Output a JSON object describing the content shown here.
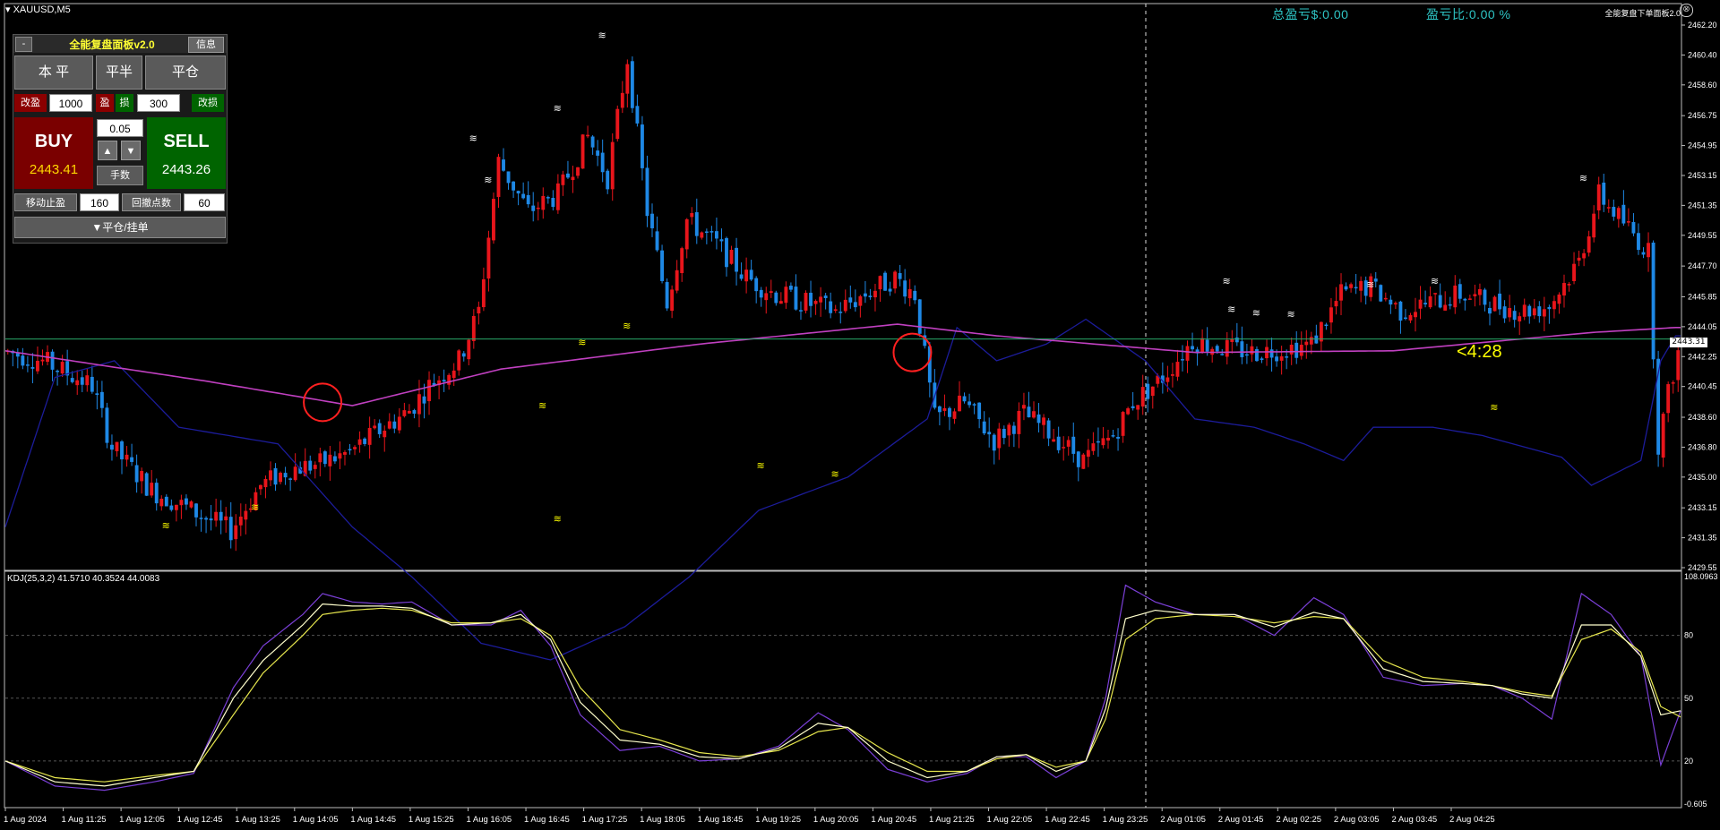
{
  "window": {
    "title": "XAUUSD,M5",
    "menu_icon": "triangle-down-icon"
  },
  "stats": {
    "total_pnl": "总盈亏$:0.00",
    "pnl_ratio": "盈亏比:0.00 %",
    "panel_name": "全能复盘下单面板2.0"
  },
  "panel": {
    "minimize": "-",
    "title": "全能复盘面板v2.0",
    "info": "信息",
    "breakeven": "本 平",
    "close_half": "平半",
    "close_all": "平仓",
    "tp_modify": "改盈",
    "tp_value": "1000",
    "tp_label": "盈",
    "sl_label": "损",
    "sl_value": "300",
    "sl_modify": "改损",
    "lot": "0.05",
    "lot_label": "手数",
    "up": "▲",
    "down": "▼",
    "buy_label": "BUY",
    "buy_price": "2443.41",
    "sell_label": "SELL",
    "sell_price": "2443.26",
    "trail_label": "移动止盈",
    "trail_value": "160",
    "retrace_label": "回撤点数",
    "retrace_value": "60",
    "pending": "▼平仓/挂单"
  },
  "price_tag": "2443.31",
  "countdown": "<4:28",
  "kdj_label": "KDJ(25,3,2) 41.5710 40.3524 44.0083",
  "colors": {
    "bull": "#e8151b",
    "bear": "#1e88e5",
    "ma": "#c040c0",
    "band": "#1c1c9a",
    "k": "#ffffcc",
    "d": "#e6e64d",
    "j": "#7a3fd6",
    "price_line": "#2aa86a"
  },
  "chart_data": {
    "type": "candlestick",
    "symbol": "XAUUSD",
    "timeframe": "M5",
    "price_axis": {
      "ticks": [
        "2462.20",
        "2460.40",
        "2458.60",
        "2456.75",
        "2454.95",
        "2453.15",
        "2451.35",
        "2449.55",
        "2447.70",
        "2445.85",
        "2444.05",
        "2442.25",
        "2440.45",
        "2438.60",
        "2436.80",
        "2435.00",
        "2433.15",
        "2431.35",
        "2429.55"
      ],
      "range": [
        2429.55,
        2462.2
      ],
      "current_price": 2443.31
    },
    "kdj_axis": {
      "ticks": [
        "108.0963",
        "80",
        "50",
        "20",
        "-0.605"
      ],
      "range": [
        -0.605,
        108.0963
      ]
    },
    "time_ticks": [
      "1 Aug 2024",
      "1 Aug 11:25",
      "1 Aug 12:05",
      "1 Aug 12:45",
      "1 Aug 13:25",
      "1 Aug 14:05",
      "1 Aug 14:45",
      "1 Aug 15:25",
      "1 Aug 16:05",
      "1 Aug 16:45",
      "1 Aug 17:25",
      "1 Aug 18:05",
      "1 Aug 18:45",
      "1 Aug 19:25",
      "1 Aug 20:05",
      "1 Aug 20:45",
      "1 Aug 21:25",
      "1 Aug 22:05",
      "1 Aug 22:45",
      "1 Aug 23:25",
      "2 Aug 01:05",
      "2 Aug 01:45",
      "2 Aug 02:25",
      "2 Aug 03:05",
      "2 Aug 03:45",
      "2 Aug 04:25"
    ],
    "price_path": [
      [
        0,
        2442.6
      ],
      [
        8,
        2442.0
      ],
      [
        18,
        2440.5
      ],
      [
        22,
        2436.8
      ],
      [
        30,
        2434.2
      ],
      [
        38,
        2433.0
      ],
      [
        46,
        2431.8
      ],
      [
        52,
        2434.5
      ],
      [
        58,
        2435.5
      ],
      [
        64,
        2435.8
      ],
      [
        70,
        2436.5
      ],
      [
        76,
        2437.8
      ],
      [
        82,
        2439.0
      ],
      [
        86,
        2440.5
      ],
      [
        92,
        2442.0
      ],
      [
        96,
        2445.0
      ],
      [
        100,
        2454.0
      ],
      [
        106,
        2451.0
      ],
      [
        112,
        2452.0
      ],
      [
        118,
        2455.5
      ],
      [
        122,
        2453.0
      ],
      [
        126,
        2460.2
      ],
      [
        130,
        2451.0
      ],
      [
        134,
        2445.5
      ],
      [
        138,
        2450.5
      ],
      [
        144,
        2449.0
      ],
      [
        150,
        2447.0
      ],
      [
        156,
        2446.0
      ],
      [
        162,
        2445.5
      ],
      [
        168,
        2445.0
      ],
      [
        174,
        2446.0
      ],
      [
        180,
        2447.0
      ],
      [
        184,
        2446.0
      ],
      [
        188,
        2438.5
      ],
      [
        194,
        2439.5
      ],
      [
        200,
        2437.2
      ],
      [
        206,
        2438.8
      ],
      [
        212,
        2437.5
      ],
      [
        218,
        2436.0
      ],
      [
        224,
        2437.5
      ],
      [
        228,
        2439.5
      ],
      [
        234,
        2441.0
      ],
      [
        240,
        2443.2
      ],
      [
        246,
        2442.8
      ],
      [
        252,
        2442.5
      ],
      [
        258,
        2442.7
      ],
      [
        264,
        2443.0
      ],
      [
        270,
        2446.0
      ],
      [
        276,
        2446.5
      ],
      [
        282,
        2445.0
      ],
      [
        288,
        2445.5
      ],
      [
        294,
        2446.0
      ],
      [
        300,
        2445.5
      ],
      [
        306,
        2445.0
      ],
      [
        312,
        2445.3
      ],
      [
        318,
        2448.0
      ],
      [
        322,
        2452.0
      ],
      [
        328,
        2450.0
      ],
      [
        332,
        2448.5
      ],
      [
        334,
        2437.0
      ],
      [
        336,
        2440.0
      ],
      [
        338,
        2442.5
      ]
    ],
    "ma_path": [
      [
        0,
        2442.6
      ],
      [
        40,
        2440.8
      ],
      [
        70,
        2439.3
      ],
      [
        100,
        2441.5
      ],
      [
        140,
        2443.0
      ],
      [
        180,
        2444.2
      ],
      [
        200,
        2443.5
      ],
      [
        240,
        2442.5
      ],
      [
        280,
        2442.6
      ],
      [
        320,
        2443.7
      ],
      [
        337,
        2444.0
      ]
    ],
    "band_path": [
      [
        0,
        2432.0
      ],
      [
        10,
        2441.0
      ],
      [
        22,
        2442.0
      ],
      [
        35,
        2438.0
      ],
      [
        55,
        2437.0
      ],
      [
        70,
        2432.0
      ],
      [
        82,
        2429.0
      ],
      [
        96,
        2425.0
      ],
      [
        110,
        2424.0
      ],
      [
        125,
        2426.0
      ],
      [
        138,
        2429.0
      ],
      [
        152,
        2433.0
      ],
      [
        170,
        2435.0
      ],
      [
        186,
        2438.5
      ],
      [
        192,
        2444.0
      ],
      [
        200,
        2442.0
      ],
      [
        210,
        2443.0
      ],
      [
        218,
        2444.5
      ],
      [
        230,
        2442.0
      ],
      [
        240,
        2438.5
      ],
      [
        252,
        2438.0
      ],
      [
        262,
        2437.0
      ],
      [
        270,
        2436.0
      ],
      [
        276,
        2438.0
      ],
      [
        288,
        2438.0
      ],
      [
        298,
        2437.5
      ],
      [
        314,
        2436.2
      ],
      [
        320,
        2434.5
      ],
      [
        330,
        2436.0
      ],
      [
        334,
        2442.0
      ],
      [
        337,
        2443.5
      ]
    ],
    "kdj": {
      "j": [
        [
          0,
          20
        ],
        [
          10,
          8
        ],
        [
          20,
          6
        ],
        [
          30,
          10
        ],
        [
          38,
          14
        ],
        [
          46,
          55
        ],
        [
          52,
          75
        ],
        [
          60,
          90
        ],
        [
          64,
          100
        ],
        [
          70,
          96
        ],
        [
          76,
          95
        ],
        [
          82,
          96
        ],
        [
          90,
          85
        ],
        [
          98,
          85
        ],
        [
          104,
          92
        ],
        [
          110,
          75
        ],
        [
          116,
          42
        ],
        [
          124,
          25
        ],
        [
          132,
          27
        ],
        [
          140,
          20
        ],
        [
          148,
          21
        ],
        [
          156,
          27
        ],
        [
          164,
          43
        ],
        [
          170,
          35
        ],
        [
          178,
          16
        ],
        [
          186,
          10
        ],
        [
          194,
          14
        ],
        [
          200,
          22
        ],
        [
          206,
          22
        ],
        [
          212,
          12
        ],
        [
          218,
          20
        ],
        [
          222,
          50
        ],
        [
          226,
          104
        ],
        [
          232,
          96
        ],
        [
          240,
          90
        ],
        [
          248,
          90
        ],
        [
          256,
          80
        ],
        [
          264,
          98
        ],
        [
          270,
          90
        ],
        [
          278,
          60
        ],
        [
          286,
          56
        ],
        [
          294,
          57
        ],
        [
          300,
          56
        ],
        [
          306,
          50
        ],
        [
          312,
          40
        ],
        [
          318,
          100
        ],
        [
          324,
          90
        ],
        [
          330,
          70
        ],
        [
          334,
          18
        ],
        [
          338,
          44
        ]
      ],
      "k": [
        [
          0,
          20
        ],
        [
          10,
          10
        ],
        [
          20,
          8
        ],
        [
          30,
          12
        ],
        [
          38,
          15
        ],
        [
          46,
          50
        ],
        [
          52,
          68
        ],
        [
          60,
          85
        ],
        [
          64,
          95
        ],
        [
          70,
          94
        ],
        [
          76,
          94
        ],
        [
          82,
          93
        ],
        [
          90,
          85
        ],
        [
          98,
          86
        ],
        [
          104,
          90
        ],
        [
          110,
          78
        ],
        [
          116,
          48
        ],
        [
          124,
          30
        ],
        [
          132,
          28
        ],
        [
          140,
          22
        ],
        [
          148,
          21
        ],
        [
          156,
          26
        ],
        [
          164,
          38
        ],
        [
          170,
          36
        ],
        [
          178,
          20
        ],
        [
          186,
          12
        ],
        [
          194,
          15
        ],
        [
          200,
          22
        ],
        [
          206,
          23
        ],
        [
          212,
          15
        ],
        [
          218,
          20
        ],
        [
          222,
          45
        ],
        [
          226,
          88
        ],
        [
          232,
          92
        ],
        [
          240,
          90
        ],
        [
          248,
          90
        ],
        [
          256,
          84
        ],
        [
          264,
          91
        ],
        [
          270,
          88
        ],
        [
          278,
          64
        ],
        [
          286,
          58
        ],
        [
          294,
          57
        ],
        [
          300,
          56
        ],
        [
          306,
          52
        ],
        [
          312,
          50
        ],
        [
          318,
          85
        ],
        [
          324,
          85
        ],
        [
          330,
          70
        ],
        [
          334,
          42
        ],
        [
          338,
          44
        ]
      ],
      "d": [
        [
          0,
          20
        ],
        [
          10,
          12
        ],
        [
          20,
          10
        ],
        [
          30,
          13
        ],
        [
          38,
          15
        ],
        [
          46,
          42
        ],
        [
          52,
          62
        ],
        [
          60,
          80
        ],
        [
          64,
          90
        ],
        [
          70,
          92
        ],
        [
          76,
          93
        ],
        [
          82,
          92
        ],
        [
          90,
          86
        ],
        [
          98,
          86
        ],
        [
          104,
          88
        ],
        [
          110,
          80
        ],
        [
          116,
          55
        ],
        [
          124,
          35
        ],
        [
          132,
          30
        ],
        [
          140,
          24
        ],
        [
          148,
          22
        ],
        [
          156,
          25
        ],
        [
          164,
          34
        ],
        [
          170,
          36
        ],
        [
          178,
          24
        ],
        [
          186,
          15
        ],
        [
          194,
          15
        ],
        [
          200,
          21
        ],
        [
          206,
          23
        ],
        [
          212,
          17
        ],
        [
          218,
          20
        ],
        [
          222,
          40
        ],
        [
          226,
          78
        ],
        [
          232,
          88
        ],
        [
          240,
          90
        ],
        [
          248,
          89
        ],
        [
          256,
          86
        ],
        [
          264,
          89
        ],
        [
          270,
          88
        ],
        [
          278,
          68
        ],
        [
          286,
          60
        ],
        [
          294,
          58
        ],
        [
          300,
          56
        ],
        [
          306,
          53
        ],
        [
          312,
          51
        ],
        [
          318,
          78
        ],
        [
          324,
          83
        ],
        [
          330,
          72
        ],
        [
          334,
          46
        ],
        [
          338,
          41
        ]
      ]
    }
  }
}
